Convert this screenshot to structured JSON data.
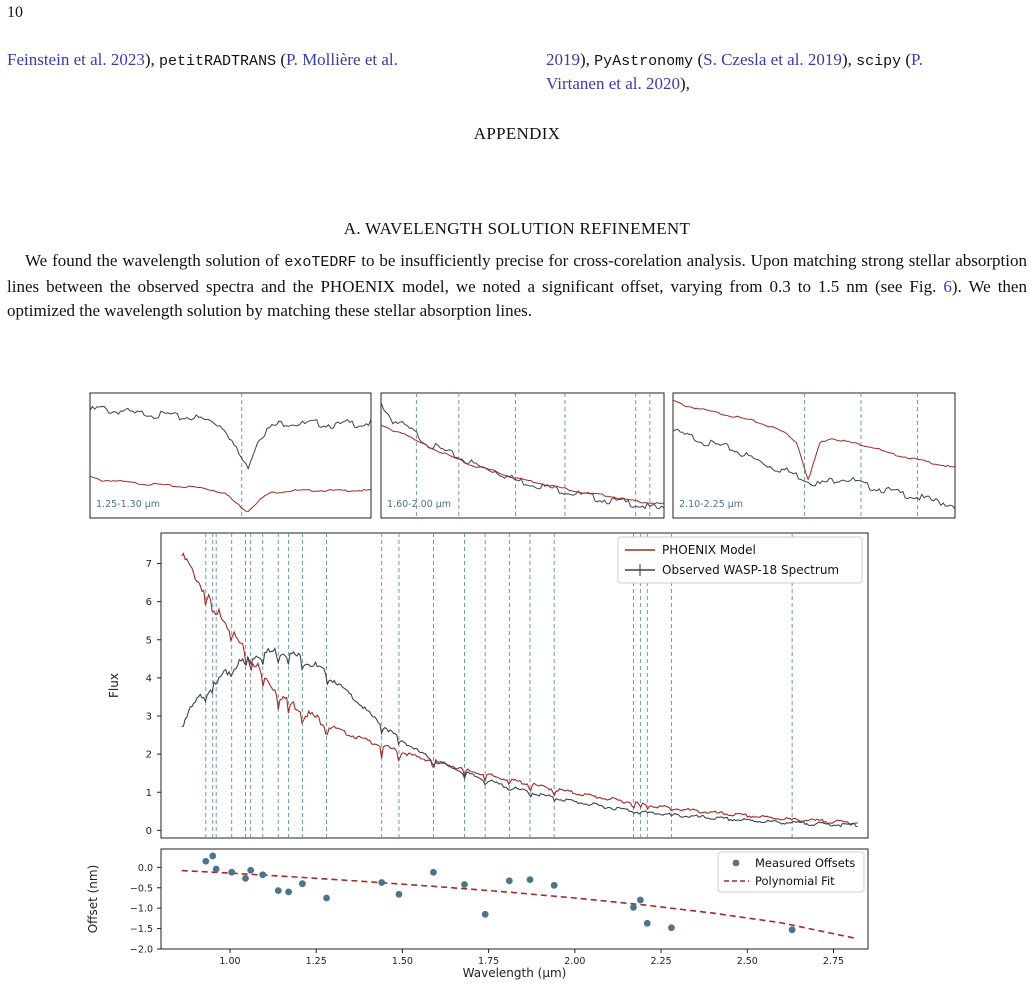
{
  "page": {
    "number": "10",
    "refs_left": [
      {
        "t": "Feinstein et al. 2023",
        "cls": "link"
      },
      {
        "t": "), ",
        "cls": ""
      },
      {
        "t": "petitRADTRANS",
        "cls": "mono"
      },
      {
        "t": " (",
        "cls": ""
      },
      {
        "t": "P. Mollière et al.",
        "cls": "link"
      }
    ],
    "refs_right_line1": [
      {
        "t": "2019",
        "cls": "link"
      },
      {
        "t": "), ",
        "cls": ""
      },
      {
        "t": "PyAstronomy",
        "cls": "mono"
      },
      {
        "t": " (",
        "cls": ""
      },
      {
        "t": "S. Czesla et al. 2019",
        "cls": "link"
      },
      {
        "t": "), ",
        "cls": ""
      },
      {
        "t": "scipy",
        "cls": "mono"
      },
      {
        "t": " (",
        "cls": ""
      },
      {
        "t": "P.",
        "cls": "link"
      }
    ],
    "refs_right_line2": [
      {
        "t": "Virtanen et al. 2020",
        "cls": "link"
      },
      {
        "t": "),",
        "cls": ""
      }
    ],
    "appendix_heading": "APPENDIX",
    "section_heading": "A. WAVELENGTH SOLUTION REFINEMENT",
    "paragraph": [
      {
        "t": "We found the wavelength solution of ",
        "cls": ""
      },
      {
        "t": "exoTEDRF",
        "cls": "mono"
      },
      {
        "t": " to be insufficiently precise for cross-corelation analysis. Upon matching strong stellar absorption lines between the observed spectra and the PHOENIX model, we noted a significant offset, varying from 0.3 to 1.5 nm (see Fig. ",
        "cls": ""
      },
      {
        "t": "6",
        "cls": "link"
      },
      {
        "t": "). We then optimized the wavelength solution by matching these stellar absorption lines.",
        "cls": ""
      }
    ]
  },
  "chart_data": [
    {
      "type": "line",
      "panel": "inset",
      "label": "1.25-1.30 μm",
      "lines_um": [
        1.277
      ],
      "series": [
        {
          "name": "Observed WASP-18 Spectrum",
          "color": "#3b4450",
          "y": [
            0.86,
            0.88,
            0.85,
            0.86,
            0.83,
            0.84,
            0.82,
            0.83,
            0.8,
            0.81,
            0.79,
            0.77,
            0.72,
            0.55,
            0.4,
            0.64,
            0.72,
            0.76,
            0.76,
            0.75,
            0.76,
            0.75,
            0.74,
            0.76,
            0.75,
            0.76
          ]
        },
        {
          "name": "PHOENIX Model",
          "color": "#a32a26",
          "y": [
            0.33,
            0.3,
            0.3,
            0.29,
            0.28,
            0.27,
            0.27,
            0.26,
            0.25,
            0.25,
            0.24,
            0.22,
            0.2,
            0.12,
            0.05,
            0.14,
            0.2,
            0.21,
            0.22,
            0.22,
            0.22,
            0.22,
            0.22,
            0.22,
            0.22,
            0.22
          ]
        }
      ]
    },
    {
      "type": "line",
      "panel": "inset",
      "label": "1.60-2.00 μm",
      "lines_um": [
        1.65,
        1.71,
        1.79,
        1.86,
        1.96,
        1.98
      ],
      "series": [
        {
          "name": "Observed WASP-18 Spectrum",
          "color": "#3b4450",
          "y": [
            0.92,
            0.78,
            0.74,
            0.68,
            0.6,
            0.56,
            0.52,
            0.48,
            0.44,
            0.4,
            0.38,
            0.34,
            0.3,
            0.28,
            0.26,
            0.24,
            0.22,
            0.2,
            0.18,
            0.16,
            0.14,
            0.13,
            0.12,
            0.1,
            0.08,
            0.07
          ]
        },
        {
          "name": "PHOENIX Model",
          "color": "#a32a26",
          "y": [
            0.74,
            0.7,
            0.68,
            0.62,
            0.58,
            0.54,
            0.5,
            0.46,
            0.42,
            0.4,
            0.38,
            0.34,
            0.32,
            0.3,
            0.28,
            0.26,
            0.24,
            0.22,
            0.2,
            0.19,
            0.18,
            0.16,
            0.14,
            0.13,
            0.12,
            0.11
          ]
        }
      ]
    },
    {
      "type": "line",
      "panel": "inset",
      "label": "2.10-2.25 μm",
      "lines_um": [
        2.17,
        2.2,
        2.23
      ],
      "series": [
        {
          "name": "Observed WASP-18 Spectrum",
          "color": "#3b4450",
          "y": [
            0.7,
            0.66,
            0.64,
            0.6,
            0.58,
            0.56,
            0.52,
            0.48,
            0.44,
            0.4,
            0.38,
            0.34,
            0.3,
            0.27,
            0.3,
            0.32,
            0.3,
            0.26,
            0.24,
            0.22,
            0.2,
            0.18,
            0.16,
            0.14,
            0.12,
            0.1
          ]
        },
        {
          "name": "PHOENIX Model",
          "color": "#a32a26",
          "y": [
            0.94,
            0.9,
            0.88,
            0.86,
            0.84,
            0.82,
            0.8,
            0.78,
            0.75,
            0.72,
            0.68,
            0.6,
            0.3,
            0.6,
            0.64,
            0.62,
            0.6,
            0.58,
            0.56,
            0.52,
            0.5,
            0.48,
            0.46,
            0.44,
            0.42,
            0.4
          ]
        }
      ]
    },
    {
      "type": "line",
      "panel": "main",
      "ylabel": "Flux",
      "xlim": [
        0.8,
        2.85
      ],
      "ylim": [
        -0.2,
        7.8
      ],
      "yticks": [
        0,
        1,
        2,
        3,
        4,
        5,
        6,
        7
      ],
      "legend": "top-right",
      "lines_um": [
        0.93,
        0.95,
        0.96,
        1.005,
        1.045,
        1.06,
        1.095,
        1.14,
        1.17,
        1.21,
        1.28,
        1.44,
        1.49,
        1.59,
        1.68,
        1.74,
        1.81,
        1.87,
        1.94,
        2.17,
        2.19,
        2.21,
        2.28,
        2.63
      ],
      "series": [
        {
          "name": "PHOENIX Model",
          "color": "#a32a26",
          "x": [
            0.86,
            0.875,
            0.89,
            0.91,
            0.93,
            0.95,
            0.98,
            1.0,
            1.02,
            1.05,
            1.08,
            1.1,
            1.13,
            1.16,
            1.2,
            1.25,
            1.3,
            1.35,
            1.4,
            1.45,
            1.5,
            1.55,
            1.6,
            1.7,
            1.8,
            1.9,
            2.0,
            2.1,
            2.2,
            2.3,
            2.4,
            2.5,
            2.6,
            2.7,
            2.82
          ],
          "y": [
            7.2,
            7.05,
            6.8,
            6.5,
            6.2,
            5.9,
            5.6,
            5.3,
            5.0,
            4.6,
            4.3,
            4.0,
            3.7,
            3.45,
            3.2,
            2.95,
            2.7,
            2.5,
            2.35,
            2.2,
            2.05,
            1.9,
            1.8,
            1.55,
            1.35,
            1.15,
            0.98,
            0.82,
            0.68,
            0.56,
            0.46,
            0.38,
            0.31,
            0.25,
            0.2
          ]
        },
        {
          "name": "Observed WASP-18 Spectrum",
          "color": "#3b4450",
          "x": [
            0.86,
            0.875,
            0.89,
            0.91,
            0.93,
            0.95,
            0.98,
            1.0,
            1.02,
            1.05,
            1.08,
            1.1,
            1.13,
            1.16,
            1.2,
            1.25,
            1.3,
            1.35,
            1.4,
            1.45,
            1.5,
            1.55,
            1.6,
            1.7,
            1.8,
            1.9,
            2.0,
            2.1,
            2.2,
            2.3,
            2.4,
            2.5,
            2.6,
            2.7,
            2.82
          ],
          "y": [
            2.75,
            3.0,
            3.2,
            3.45,
            3.65,
            3.85,
            4.05,
            4.2,
            4.35,
            4.5,
            4.6,
            4.65,
            4.7,
            4.68,
            4.55,
            4.3,
            3.95,
            3.55,
            3.1,
            2.7,
            2.35,
            2.05,
            1.8,
            1.45,
            1.15,
            0.93,
            0.75,
            0.6,
            0.48,
            0.39,
            0.32,
            0.26,
            0.21,
            0.17,
            0.13
          ]
        }
      ]
    },
    {
      "type": "scatter",
      "panel": "residual",
      "xlabel": "Wavelength (μm)",
      "ylabel": "Offset (nm)",
      "xlim": [
        0.8,
        2.85
      ],
      "ylim": [
        -2.0,
        0.45
      ],
      "xticks": [
        1.0,
        1.25,
        1.5,
        1.75,
        2.0,
        2.25,
        2.5,
        2.75
      ],
      "yticks": [
        0.0,
        -0.5,
        -1.0,
        -1.5,
        -2.0
      ],
      "xtick_labels": [
        "1.00",
        "1.25",
        "1.50",
        "1.75",
        "2.00",
        "2.25",
        "2.50",
        "2.75"
      ],
      "ytick_labels": [
        "0.0",
        "−0.5",
        "−1.0",
        "−1.5",
        "−2.0"
      ],
      "legend": "top-right",
      "series": [
        {
          "name": "Measured Offsets",
          "color": "#4d7489",
          "style": "points",
          "x": [
            0.93,
            0.95,
            0.96,
            1.005,
            1.045,
            1.06,
            1.095,
            1.14,
            1.17,
            1.21,
            1.28,
            1.44,
            1.49,
            1.59,
            1.68,
            1.74,
            1.81,
            1.87,
            1.94,
            2.17,
            2.19,
            2.21,
            2.28,
            2.63
          ],
          "y": [
            0.15,
            0.28,
            -0.04,
            -0.12,
            -0.27,
            -0.07,
            -0.18,
            -0.57,
            -0.6,
            -0.4,
            -0.75,
            -0.37,
            -0.66,
            -0.12,
            -0.42,
            -1.15,
            -0.33,
            -0.3,
            -0.44,
            -0.98,
            -0.8,
            -1.37,
            -1.48,
            -1.53
          ]
        },
        {
          "name": "Polynomial Fit",
          "color": "#a32a26",
          "style": "dashed",
          "x": [
            0.86,
            1.0,
            1.2,
            1.4,
            1.6,
            1.8,
            2.0,
            2.2,
            2.4,
            2.6,
            2.82
          ],
          "y": [
            -0.08,
            -0.14,
            -0.24,
            -0.35,
            -0.47,
            -0.6,
            -0.75,
            -0.92,
            -1.12,
            -1.36,
            -1.75
          ]
        }
      ]
    }
  ]
}
